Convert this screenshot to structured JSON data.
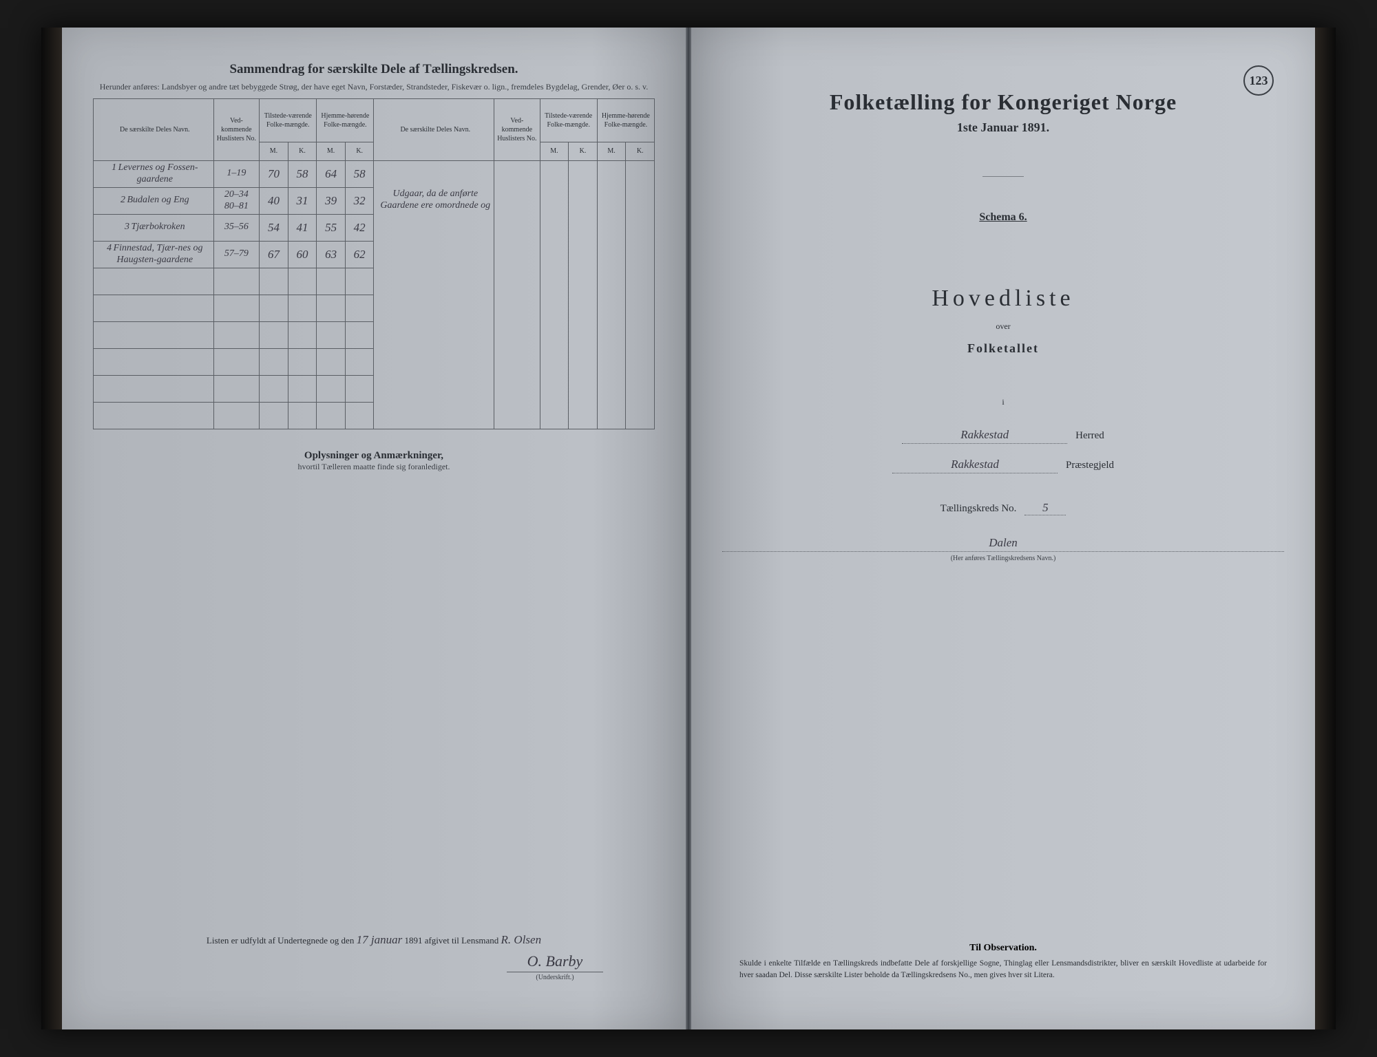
{
  "page_number": "123",
  "left": {
    "title": "Sammendrag for særskilte Dele af Tællingskredsen.",
    "subtitle": "Herunder anføres: Landsbyer og andre tæt bebyggede Strøg, der have eget Navn, Forstæder, Strandsteder, Fiskevær o. lign., fremdeles Bygdelag, Grender, Øer o. s. v.",
    "table": {
      "headers": {
        "name": "De særskilte Deles Navn.",
        "no": "Ved-kommende Huslisters No.",
        "present": "Tilstede-værende Folke-mængde.",
        "resident": "Hjemme-hørende Folke-mængde.",
        "m": "M.",
        "k": "K."
      },
      "rows": [
        {
          "idx": "1",
          "name": "Levernes og Fossen-gaardene",
          "no": "1–19",
          "pm": "70",
          "pk": "58",
          "rm": "64",
          "rk": "58",
          "note": ""
        },
        {
          "idx": "2",
          "name": "Budalen og Eng",
          "no": "20–34\n80–81",
          "pm": "40",
          "pk": "31",
          "rm": "39",
          "rk": "32",
          "note": "Udgaar, da de anførte Gaardene ere omordnede og"
        },
        {
          "idx": "3",
          "name": "Tjærbokroken",
          "no": "35–56",
          "pm": "54",
          "pk": "41",
          "rm": "55",
          "rk": "42",
          "note": ""
        },
        {
          "idx": "4",
          "name": "Finnestad, Tjær-nes og Haugsten-gaardene",
          "no": "57–79",
          "pm": "67",
          "pk": "60",
          "rm": "63",
          "rk": "62",
          "note": ""
        }
      ],
      "blank_rows": 6
    },
    "oplys_title": "Oplysninger og Anmærkninger,",
    "oplys_sub": "hvortil Tælleren maatte finde sig foranlediget.",
    "footer": {
      "prefix": "Listen er udfyldt af Undertegnede og den",
      "date_hand": "17 januar",
      "year": "1891 afgivet til Lensmand",
      "lensmand_hand": "R. Olsen",
      "signature": "O. Barby",
      "sig_label": "(Underskrift.)"
    }
  },
  "right": {
    "title": "Folketælling for Kongeriget Norge",
    "date": "1ste Januar 1891.",
    "schema": "Schema 6.",
    "hovedliste": "Hovedliste",
    "over": "over",
    "folketallet": "Folketallet",
    "i": "i",
    "herred_hand": "Rakkestad",
    "herred_label": "Herred",
    "prestegjeld_hand": "Rakkestad",
    "prestegjeld_label": "Præstegjeld",
    "kreds_label": "Tællingskreds No.",
    "kreds_no": "5",
    "kreds_name": "Dalen",
    "kreds_note": "(Her anføres Tællingskredsens Navn.)",
    "obs_title": "Til Observation.",
    "obs_text": "Skulde i enkelte Tilfælde en Tællingskreds indbefatte Dele af forskjellige Sogne, Thinglag eller Lensmandsdistrikter, bliver en særskilt Hovedliste at udarbeide for hver saadan Del. Disse særskilte Lister beholde da Tællingskredsens No., men gives hver sit Litera."
  },
  "colors": {
    "paper": "#bcc0c6",
    "ink": "#2a2e34",
    "rule": "#5a5e64",
    "hand": "#3a3a44"
  }
}
